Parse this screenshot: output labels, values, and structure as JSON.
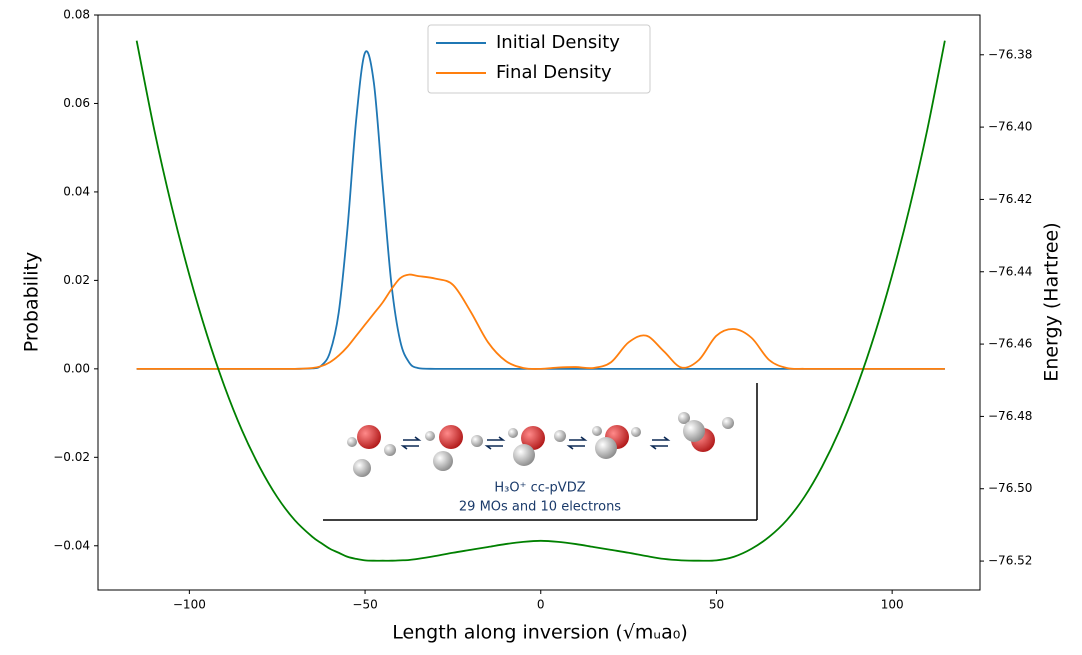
{
  "chart_data": {
    "type": "line",
    "xlabel": "Length along inversion (√mᵤa₀)",
    "ylabel": "Probability",
    "y2label": "Energy (Hartree)",
    "y2label_color": "#008000",
    "legend": "upper center",
    "grid": false,
    "xlim": [
      -126,
      125
    ],
    "ylim": [
      -0.05,
      0.08
    ],
    "y2lim": [
      -76.528,
      -76.369
    ],
    "xticks": [
      {
        "value": -100,
        "label": "−100"
      },
      {
        "value": -50,
        "label": "−50"
      },
      0,
      50,
      100
    ],
    "yticks": [
      {
        "value": -0.04,
        "label": "−0.04"
      },
      {
        "value": -0.02,
        "label": "−0.02"
      },
      {
        "value": 0,
        "label": "0.00"
      },
      {
        "value": 0.02,
        "label": "0.02"
      },
      {
        "value": 0.04,
        "label": "0.04"
      },
      {
        "value": 0.06,
        "label": "0.06"
      },
      {
        "value": 0.08,
        "label": "0.08"
      }
    ],
    "y2ticks": [
      {
        "value": -76.52,
        "label": "−76.52"
      },
      {
        "value": -76.5,
        "label": "−76.50"
      },
      {
        "value": -76.48,
        "label": "−76.48"
      },
      {
        "value": -76.46,
        "label": "−76.46"
      },
      {
        "value": -76.44,
        "label": "−76.44"
      },
      {
        "value": -76.42,
        "label": "−76.42"
      },
      {
        "value": -76.4,
        "label": "−76.40"
      },
      {
        "value": -76.38,
        "label": "−76.38"
      }
    ],
    "x": [
      -115,
      -110,
      -105,
      -100,
      -95,
      -90,
      -85,
      -80,
      -75,
      -70,
      -65,
      -62.5,
      -60,
      -57.5,
      -55,
      -52.5,
      -50,
      -47.5,
      -45,
      -42.5,
      -40,
      -37.5,
      -35,
      -30,
      -25,
      -20,
      -15,
      -10,
      -5,
      0,
      5,
      10,
      15,
      20,
      25,
      30,
      35,
      40,
      45,
      50,
      55,
      60,
      65,
      70,
      75,
      80,
      85,
      90,
      95,
      100,
      105,
      110,
      115
    ],
    "series": [
      {
        "name": "Initial Density",
        "color": "#1f77b4",
        "values": [
          0,
          0,
          0,
          0,
          0,
          0,
          0,
          0,
          0,
          0,
          0.0001,
          0.0007,
          0.0037,
          0.0127,
          0.0318,
          0.0565,
          0.0715,
          0.0647,
          0.0417,
          0.0192,
          0.0063,
          0.0015,
          0.0002,
          0,
          0,
          0,
          0,
          0,
          0,
          0,
          0,
          0,
          0,
          0,
          0,
          0,
          0,
          0,
          0,
          0,
          0,
          0,
          0,
          0,
          0,
          0,
          0,
          0,
          0,
          0,
          0,
          0,
          0
        ]
      },
      {
        "name": "Final Density",
        "color": "#ff7f0e",
        "values": [
          0,
          0,
          0,
          0,
          0,
          0,
          0,
          0,
          0,
          0,
          0.0002,
          0.0006,
          0.0015,
          0.003,
          0.005,
          0.0075,
          0.01,
          0.0125,
          0.015,
          0.018,
          0.0205,
          0.0213,
          0.021,
          0.0204,
          0.019,
          0.013,
          0.006,
          0.0018,
          0.0002,
          0,
          0.0003,
          0.0004,
          0.0002,
          0.0015,
          0.006,
          0.0075,
          0.004,
          0.0003,
          0.002,
          0.0075,
          0.009,
          0.007,
          0.002,
          0.0002,
          0,
          0,
          0,
          0,
          0,
          0,
          0,
          0,
          0
        ]
      },
      {
        "color": "#008000",
        "axis": "y2",
        "values": [
          -76.3761,
          -76.4007,
          -76.4221,
          -76.4409,
          -76.4574,
          -76.4717,
          -76.4839,
          -76.494,
          -76.5023,
          -76.5087,
          -76.5133,
          -76.515,
          -76.5166,
          -76.5177,
          -76.5188,
          -76.5194,
          -76.5198,
          -76.5199,
          -76.5199,
          -76.5199,
          -76.5198,
          -76.5197,
          -76.5194,
          -76.5186,
          -76.5177,
          -76.5169,
          -76.5161,
          -76.5153,
          -76.5147,
          -76.5144,
          -76.5147,
          -76.5153,
          -76.5161,
          -76.5169,
          -76.5177,
          -76.5186,
          -76.5194,
          -76.5198,
          -76.5199,
          -76.5198,
          -76.5188,
          -76.5166,
          -76.5133,
          -76.5087,
          -76.5023,
          -76.494,
          -76.4839,
          -76.4717,
          -76.4574,
          -76.4409,
          -76.4221,
          -76.4007,
          -76.3761
        ]
      }
    ],
    "annotations": [
      "H₃O⁺ cc-pVDZ",
      "29 MOs and 10 electrons"
    ]
  }
}
